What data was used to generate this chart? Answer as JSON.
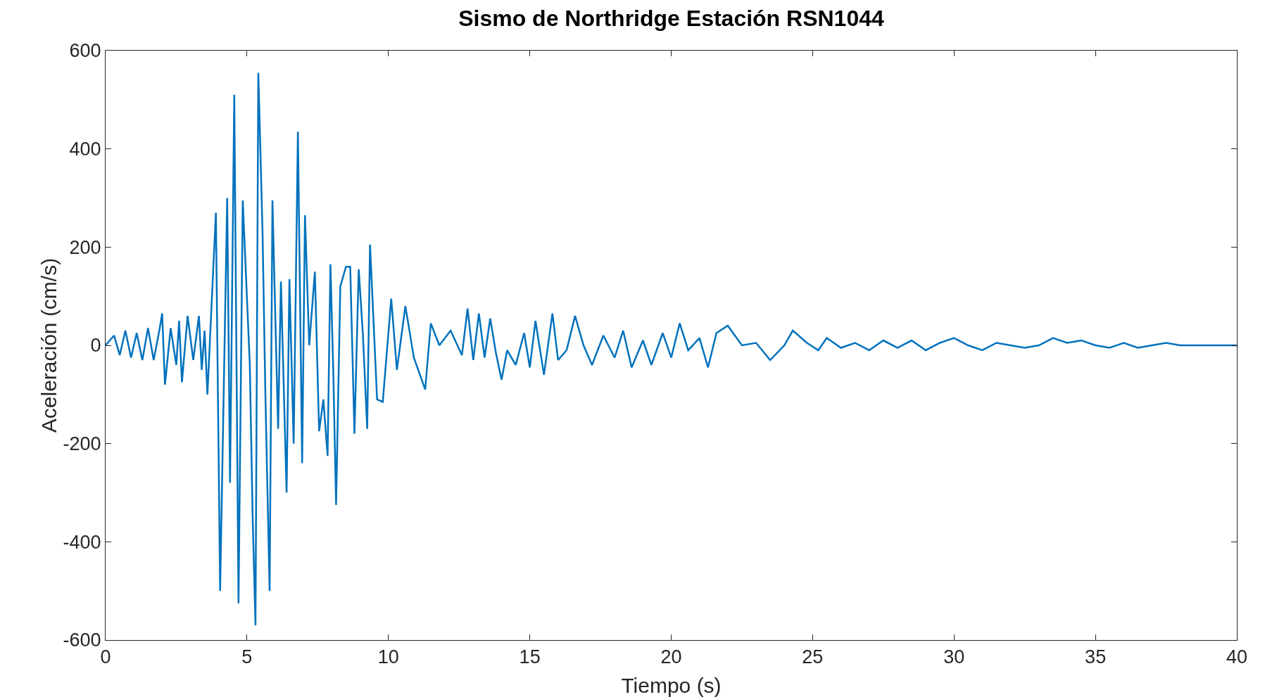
{
  "chart_data": {
    "type": "line",
    "title": "Sismo de Northridge Estación RSN1044",
    "xlabel": "Tiempo (s)",
    "ylabel": "Aceleración (cm/s)",
    "xlim": [
      0,
      40
    ],
    "xticks": [
      0,
      5,
      10,
      15,
      20,
      25,
      30,
      35,
      40
    ],
    "ylim": [
      -600,
      600
    ],
    "yticks": [
      -600,
      -400,
      -200,
      0,
      200,
      400,
      600
    ],
    "grid": false,
    "marker": "none",
    "line_style": "solid",
    "series": [
      {
        "color": "#0072bd",
        "x": [
          0,
          0.3,
          0.5,
          0.7,
          0.9,
          1.1,
          1.3,
          1.5,
          1.7,
          1.9,
          2.0,
          2.1,
          2.3,
          2.5,
          2.6,
          2.7,
          2.9,
          3.1,
          3.3,
          3.4,
          3.5,
          3.6,
          3.9,
          4.05,
          4.3,
          4.4,
          4.55,
          4.7,
          4.85,
          5.1,
          5.2,
          5.3,
          5.4,
          5.55,
          5.65,
          5.8,
          5.9,
          6.1,
          6.2,
          6.4,
          6.5,
          6.65,
          6.8,
          6.95,
          7.05,
          7.2,
          7.4,
          7.55,
          7.7,
          7.85,
          7.95,
          8.05,
          8.15,
          8.3,
          8.5,
          8.65,
          8.8,
          8.95,
          9.1,
          9.25,
          9.35,
          9.6,
          9.8,
          10.1,
          10.3,
          10.6,
          10.9,
          11.3,
          11.5,
          11.8,
          12.2,
          12.6,
          12.8,
          13.0,
          13.2,
          13.4,
          13.6,
          13.8,
          14.0,
          14.2,
          14.5,
          14.8,
          15.0,
          15.2,
          15.5,
          15.8,
          16.0,
          16.3,
          16.6,
          16.9,
          17.2,
          17.6,
          18.0,
          18.3,
          18.6,
          19.0,
          19.3,
          19.7,
          20.0,
          20.3,
          20.6,
          21.0,
          21.3,
          21.6,
          22.0,
          22.5,
          23.0,
          23.5,
          24.0,
          24.3,
          24.8,
          25.2,
          25.5,
          26.0,
          26.5,
          27.0,
          27.5,
          28.0,
          28.5,
          29.0,
          29.5,
          30.0,
          30.5,
          31.0,
          31.5,
          32.0,
          32.5,
          33.0,
          33.5,
          34.0,
          34.5,
          35.0,
          35.5,
          36.0,
          36.5,
          37.0,
          37.5,
          38.0,
          39.0,
          40.0
        ],
        "values": [
          0,
          20,
          -20,
          30,
          -25,
          25,
          -30,
          35,
          -30,
          30,
          65,
          -80,
          35,
          -40,
          50,
          -75,
          60,
          -30,
          60,
          -50,
          30,
          -100,
          270,
          -500,
          300,
          -280,
          510,
          -525,
          295,
          -40,
          -350,
          -570,
          555,
          230,
          -100,
          -500,
          295,
          -170,
          130,
          -300,
          135,
          -200,
          435,
          -240,
          265,
          0,
          150,
          -175,
          -110,
          -225,
          165,
          -50,
          -325,
          120,
          160,
          160,
          -180,
          155,
          20,
          -170,
          205,
          -110,
          -115,
          95,
          -50,
          80,
          -25,
          -90,
          45,
          0,
          30,
          -20,
          75,
          -30,
          65,
          -25,
          55,
          -15,
          -70,
          -10,
          -40,
          25,
          -45,
          50,
          -60,
          65,
          -30,
          -10,
          60,
          0,
          -40,
          20,
          -25,
          30,
          -45,
          10,
          -40,
          25,
          -25,
          45,
          -10,
          15,
          -45,
          25,
          40,
          0,
          5,
          -30,
          0,
          30,
          5,
          -10,
          15,
          -5,
          5,
          -10,
          10,
          -5,
          10,
          -10,
          5,
          15,
          0,
          -10,
          5,
          0,
          -5,
          0,
          15,
          5,
          10,
          0,
          -5,
          5,
          -5,
          0,
          5,
          0,
          0,
          0
        ]
      }
    ]
  }
}
